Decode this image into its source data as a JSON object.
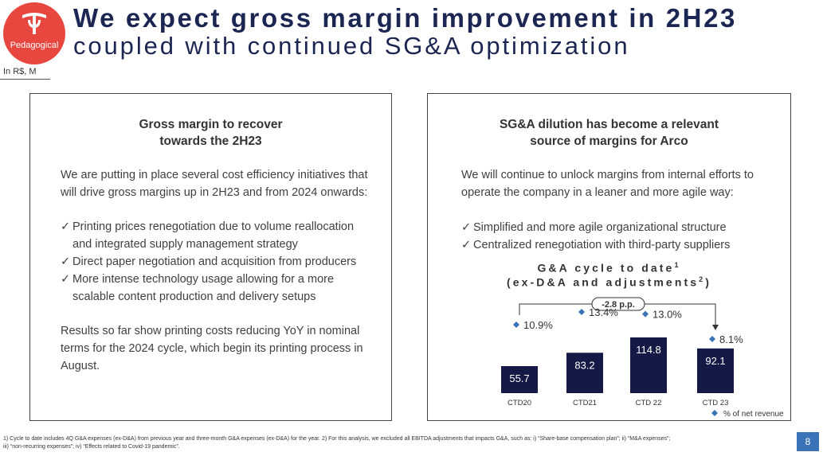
{
  "header": {
    "logo_text": "Pedagogical",
    "title_line1": "We expect gross margin improvement in 2H23",
    "title_line2": "coupled with continued SG&A optimization",
    "units": "In R$, M"
  },
  "left_panel": {
    "title_line1": "Gross margin to recover",
    "title_line2": "towards the 2H23",
    "intro_line1": "We are putting in place several cost efficiency initiatives that",
    "intro_line2": "will drive gross margins up in 2H23 and from 2024 onwards:",
    "bullet1_line1": "Printing prices renegotiation due to volume reallocation",
    "bullet1_line2": "and integrated supply management strategy",
    "bullet2_line1": "Direct paper negotiation and acquisition from producers",
    "bullet3_line1": "More intense technology usage allowing for a more",
    "bullet3_line2": "scalable content production and delivery setups",
    "results_line1": "Results so far show printing costs reducing YoY in nominal",
    "results_line2": "terms for the 2024 cycle, which begin its printing process in",
    "results_line3": "August."
  },
  "right_panel": {
    "title_line1": "SG&A dilution has become a relevant",
    "title_line2": "source of margins for Arco",
    "intro_line1": "We will continue to unlock margins from internal efforts to",
    "intro_line2": "operate the company in a leaner and more agile way:",
    "bullet1": "Simplified and more agile organizational structure",
    "bullet2": "Centralized renegotiation with third-party suppliers",
    "chart_title_line1": "G&A cycle to date",
    "chart_title_sup1": "1",
    "chart_title_line2": "(ex-D&A and adjustments",
    "chart_title_sup2": "2",
    "chart_title_close": ")"
  },
  "chart_data": {
    "type": "bar",
    "title": "G&A cycle to date (ex-D&A and adjustments)",
    "categories": [
      "CTD20",
      "CTD21",
      "CTD 22",
      "CTD 23"
    ],
    "series": [
      {
        "name": "G&A",
        "values": [
          55.7,
          83.2,
          114.8,
          92.1
        ]
      },
      {
        "name": "% of net revenue",
        "values": [
          10.9,
          13.4,
          13.0,
          8.1
        ]
      }
    ],
    "value_labels": [
      "55.7",
      "83.2",
      "114.8",
      "92.1"
    ],
    "pct_labels": [
      "10.9%",
      "13.4%",
      "13.0%",
      "8.1%"
    ],
    "annotation": "-2.8 p.p.",
    "legend": "% of net revenue",
    "legend_position": "bottom-right",
    "ylim": [
      0,
      130
    ],
    "bar_color": "#141a45",
    "marker_color": "#3a73b7"
  },
  "footer": {
    "footnote_line1": "1)     Cycle to date includes 4Q G&A expenses (ex-D&A) from previous year and three-month G&A expenses (ex-D&A) for the year. 2) For this analysis, we excluded all EBITDA adjustments that impacts G&A, such as: i) “Share-base compensation plan”; ii) “M&A expenses”;",
    "footnote_line2": "iii) “non-recurring expenses”; iv) “Effects related to Covid-19 pandemic”.",
    "page_number": "8"
  },
  "colors": {
    "title": "#1c2652",
    "logo": "#e8473f",
    "page_badge": "#3a73b7"
  }
}
